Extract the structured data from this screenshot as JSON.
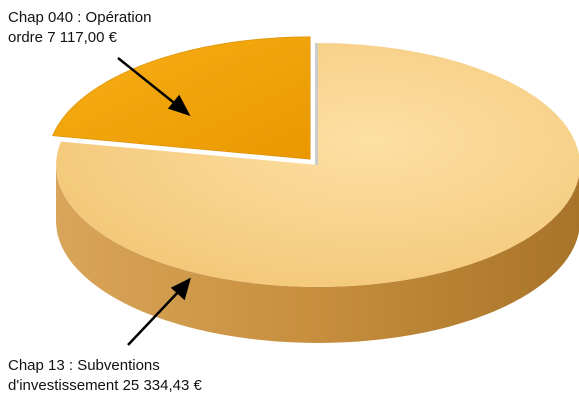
{
  "chart_data": {
    "type": "pie3d",
    "categories": [
      "Chap 040 : Opération ordre",
      "Chap 13 : Subventions d'investissement"
    ],
    "values": [
      7117.0,
      25334.43
    ],
    "value_labels": [
      "7 117,00 €",
      "25 334,43 €"
    ],
    "colors": [
      "#f2a300",
      "#fbd58a"
    ]
  }
}
